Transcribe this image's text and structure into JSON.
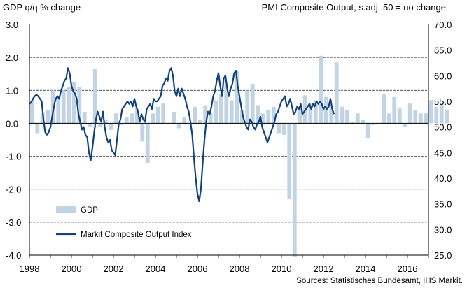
{
  "chart_data": {
    "type": "bar+line",
    "left_title": "GDP q/q % change",
    "right_title": "PMI Composite  Output, s.adj. 50 = no change",
    "source": "Sources: Statistisches Bundesamt, IHS Markit.",
    "x_range": [
      1998.0,
      2017.0
    ],
    "x_ticks": [
      "1998",
      "2000",
      "2002",
      "2004",
      "2006",
      "2008",
      "2010",
      "2012",
      "2014",
      "2016"
    ],
    "y_left": {
      "min": -4.0,
      "max": 3.0,
      "ticks": [
        "-4.0",
        "-3.0",
        "-2.0",
        "-1.0",
        "0.0",
        "1.0",
        "2.0",
        "3.0"
      ]
    },
    "y_right": {
      "min": 25.0,
      "max": 70.0,
      "ticks": [
        "25.0",
        "30.0",
        "35.0",
        "40.0",
        "45.0",
        "50.0",
        "55.0",
        "60.0",
        "65.0",
        "70.0"
      ]
    },
    "legend": [
      "GDP",
      "Markit Composite Output Index"
    ],
    "colors": {
      "gdp": "#c2d4e3",
      "pmi": "#12427e",
      "grid": "#1a1a1a"
    },
    "gdp": {
      "x_start": 1998.0,
      "step": 0.25,
      "values": [
        0.7,
        -0.3,
        0.3,
        0.4,
        1.0,
        0.8,
        1.0,
        1.1,
        1.25,
        1.1,
        0.35,
        -0.1,
        1.65,
        -0.1,
        0.1,
        -0.2,
        0.3,
        -0.05,
        0.2,
        0.3,
        0.45,
        -0.55,
        -1.2,
        0.3,
        0.5,
        0.6,
        0.0,
        0.35,
        -0.15,
        0.2,
        0.0,
        0.5,
        0.1,
        0.55,
        0.3,
        0.7,
        0.9,
        1.15,
        0.7,
        1.6,
        0.4,
        1.0,
        1.2,
        0.55,
        0.3,
        0.4,
        0.5,
        -0.3,
        -0.35,
        -2.3,
        -4.05,
        0.5,
        0.85,
        0.6,
        0.7,
        2.05,
        0.8,
        0.5,
        1.85,
        0.5,
        0.4,
        0.05,
        0.3,
        0.1,
        -0.45,
        -0.05,
        0.0,
        0.9,
        0.3,
        0.8,
        0.45,
        -0.1,
        0.6,
        0.4,
        0.3,
        0.3,
        0.7,
        0.5,
        0.6,
        0.4
      ]
    },
    "pmi": {
      "x_start": 1998.0,
      "step": 0.0833333,
      "values": [
        54.5,
        54.8,
        55.5,
        56.0,
        56.3,
        56.0,
        55.5,
        55.0,
        51.5,
        49.0,
        48.5,
        49.0,
        50.0,
        52.0,
        54.0,
        55.5,
        56.0,
        55.5,
        57.0,
        58.0,
        59.0,
        59.5,
        61.5,
        60.5,
        58.0,
        57.0,
        56.5,
        55.5,
        52.5,
        51.0,
        49.5,
        50.0,
        48.5,
        48.0,
        45.0,
        43.5,
        46.0,
        49.0,
        51.5,
        53.0,
        52.0,
        51.0,
        53.0,
        50.0,
        48.0,
        47.0,
        47.5,
        45.5,
        45.0,
        44.5,
        47.5,
        50.5,
        51.5,
        53.5,
        54.0,
        54.5,
        55.0,
        54.5,
        55.0,
        54.0,
        55.5,
        54.0,
        53.0,
        51.0,
        52.5,
        51.5,
        51.0,
        53.5,
        54.0,
        54.5,
        53.5,
        55.5,
        55.0,
        55.0,
        55.5,
        56.0,
        58.0,
        58.5,
        59.5,
        59.0,
        61.0,
        61.5,
        60.0,
        57.0,
        56.0,
        57.5,
        56.0,
        57.5,
        56.5,
        55.5,
        54.0,
        53.0,
        51.0,
        48.5,
        44.0,
        40.0,
        37.0,
        35.5,
        38.0,
        43.0,
        47.5,
        51.0,
        53.0,
        52.5,
        54.0,
        56.0,
        57.0,
        59.0,
        60.5,
        58.0,
        56.0,
        59.5,
        60.0,
        57.5,
        56.0,
        57.5,
        58.5,
        60.5,
        61.0,
        58.0,
        56.0,
        54.0,
        52.0,
        51.0,
        50.0,
        49.5,
        51.5,
        51.0,
        50.0,
        49.5,
        50.5,
        51.0,
        52.0,
        50.0,
        49.0,
        48.0,
        47.0,
        48.0,
        49.0,
        50.0,
        51.0,
        52.5,
        53.0,
        54.0,
        55.0,
        55.5,
        56.0,
        54.0,
        54.5,
        55.5,
        54.0,
        52.5,
        53.0,
        54.0,
        53.5,
        54.5,
        52.5,
        53.0,
        53.5,
        54.0,
        54.5,
        53.5,
        54.5,
        54.0,
        55.0,
        54.5,
        55.0,
        54.5,
        53.5,
        54.0,
        53.5,
        54.0,
        55.5,
        53.5,
        52.5
      ]
    }
  }
}
